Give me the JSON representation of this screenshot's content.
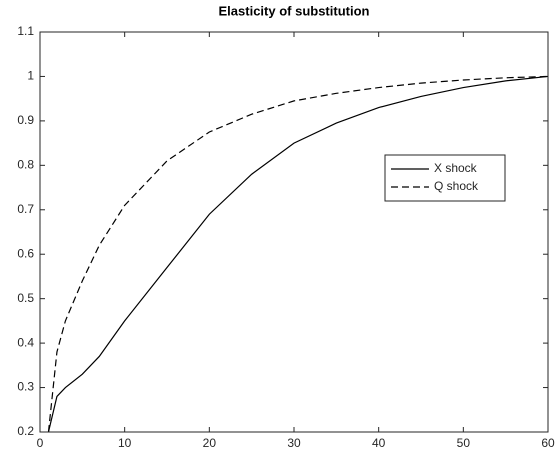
{
  "chart_data": {
    "type": "line",
    "title": "Elasticity of substitution",
    "x": [
      1,
      2,
      3,
      5,
      7,
      10,
      15,
      20,
      25,
      30,
      35,
      40,
      45,
      50,
      55,
      60
    ],
    "series": [
      {
        "name": "X shock",
        "color": "#000000",
        "style": "solid",
        "values": [
          0.2,
          0.28,
          0.3,
          0.33,
          0.37,
          0.45,
          0.57,
          0.69,
          0.78,
          0.85,
          0.895,
          0.93,
          0.955,
          0.975,
          0.99,
          1.0
        ]
      },
      {
        "name": "Q shock",
        "color": "#000000",
        "style": "dashed",
        "values": [
          0.2,
          0.38,
          0.45,
          0.54,
          0.62,
          0.71,
          0.81,
          0.875,
          0.915,
          0.945,
          0.962,
          0.975,
          0.985,
          0.992,
          0.997,
          1.0
        ]
      }
    ],
    "xlim": [
      0,
      60
    ],
    "xticks": [
      0,
      10,
      20,
      30,
      40,
      50,
      60
    ],
    "ylim": [
      0.2,
      1.1
    ],
    "yticks": [
      0.2,
      0.3,
      0.4,
      0.5,
      0.6,
      0.7,
      0.8,
      0.9,
      1,
      1.1
    ],
    "grid": false,
    "legend": "east"
  }
}
